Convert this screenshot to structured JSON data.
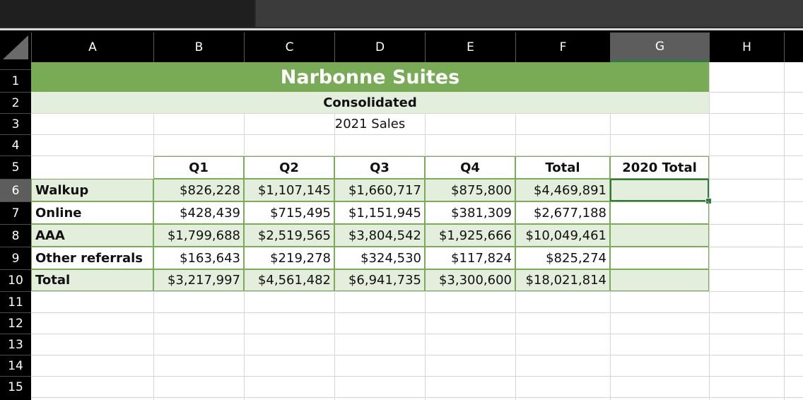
{
  "columns": [
    "A",
    "B",
    "C",
    "D",
    "E",
    "F",
    "G",
    "H"
  ],
  "selected_column": "G",
  "rows": [
    "1",
    "2",
    "3",
    "4",
    "5",
    "6",
    "7",
    "8",
    "9",
    "10",
    "11",
    "12",
    "13",
    "14",
    "15"
  ],
  "selected_row": "6",
  "title": "Narbonne Suites",
  "subtitle": "Consolidated",
  "period": "2021 Sales",
  "table": {
    "headers": [
      "Q1",
      "Q2",
      "Q3",
      "Q4",
      "Total",
      "2020 Total"
    ],
    "rows": [
      {
        "label": "Walkup",
        "values": [
          "$826,228",
          "$1,107,145",
          "$1,660,717",
          "$875,800",
          "$4,469,891",
          ""
        ]
      },
      {
        "label": "Online",
        "values": [
          "$428,439",
          "$715,495",
          "$1,151,945",
          "$381,309",
          "$2,677,188",
          ""
        ]
      },
      {
        "label": "AAA",
        "values": [
          "$1,799,688",
          "$2,519,565",
          "$3,804,542",
          "$1,925,666",
          "$10,049,461",
          ""
        ]
      },
      {
        "label": "Other referrals",
        "values": [
          "$163,643",
          "$219,278",
          "$324,530",
          "$117,824",
          "$825,274",
          ""
        ]
      },
      {
        "label": "Total",
        "values": [
          "$3,217,997",
          "$4,561,482",
          "$6,941,735",
          "$3,300,600",
          "$18,021,814",
          ""
        ]
      }
    ]
  },
  "colors": {
    "title_fill": "#79aa55",
    "band_fill": "#e4eedd",
    "selection": "#2f7a3e"
  }
}
